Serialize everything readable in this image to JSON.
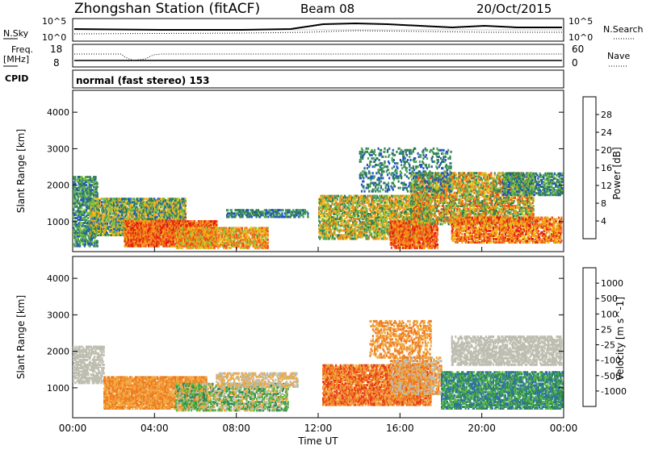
{
  "header": {
    "station": "Zhongshan Station (fitACF)",
    "beam": "Beam 08",
    "date": "20/Oct/2015"
  },
  "top_panels": {
    "nsky_label": "N.Sky",
    "nsky_ticks": [
      "10^5",
      "10^0"
    ],
    "nsearch_label": "N.Search",
    "nsearch_ticks": [
      "10^5",
      "10^0"
    ],
    "freq_label": "Freq.",
    "freq_unit": "[MHz]",
    "freq_ticks": [
      "18",
      "8"
    ],
    "nave_label": "Nave",
    "nave_ticks": [
      "60",
      "0"
    ],
    "cpid_label": "CPID",
    "cpid_text": "normal (fast stereo) 153"
  },
  "chart_data": [
    {
      "type": "heatmap",
      "title": "",
      "xlabel": "",
      "ylabel": "Slant Range [km]",
      "xlim": [
        0,
        24
      ],
      "ylim": [
        180,
        4600
      ],
      "x_ticks": [
        "00:00",
        "04:00",
        "08:00",
        "12:00",
        "16:00",
        "20:00",
        "00:00"
      ],
      "y_ticks": [
        "1000",
        "2000",
        "3000",
        "4000"
      ],
      "colorbar": {
        "label": "Power [dB]",
        "ticks": [
          "4",
          "8",
          "12",
          "16",
          "20",
          "24",
          "28"
        ],
        "colors": [
          "#1f1fff",
          "#2255bb",
          "#2e7d4f",
          "#4aa05a",
          "#7fc241",
          "#e8c21a",
          "#f5a21b",
          "#f57a1a",
          "#f04a18",
          "#e0180f"
        ]
      }
    },
    {
      "type": "heatmap",
      "title": "",
      "xlabel": "Time UT",
      "ylabel": "Slant Range [km]",
      "xlim": [
        0,
        24
      ],
      "ylim": [
        180,
        4600
      ],
      "x_ticks": [
        "00:00",
        "04:00",
        "08:00",
        "12:00",
        "16:00",
        "20:00",
        "00:00"
      ],
      "y_ticks": [
        "1000",
        "2000",
        "3000",
        "4000"
      ],
      "colorbar": {
        "label": "Velocity [m s^-1]",
        "ticks": [
          "1000",
          "500",
          "100",
          "25",
          "-25",
          "-100",
          "-500",
          "-1000"
        ],
        "colors": [
          "#1f2fd0",
          "#2e6fa8",
          "#2f8a55",
          "#56b845",
          "#bdbdb0",
          "#f0a840",
          "#f07a20",
          "#e83a18",
          "#e0100f"
        ]
      }
    }
  ]
}
